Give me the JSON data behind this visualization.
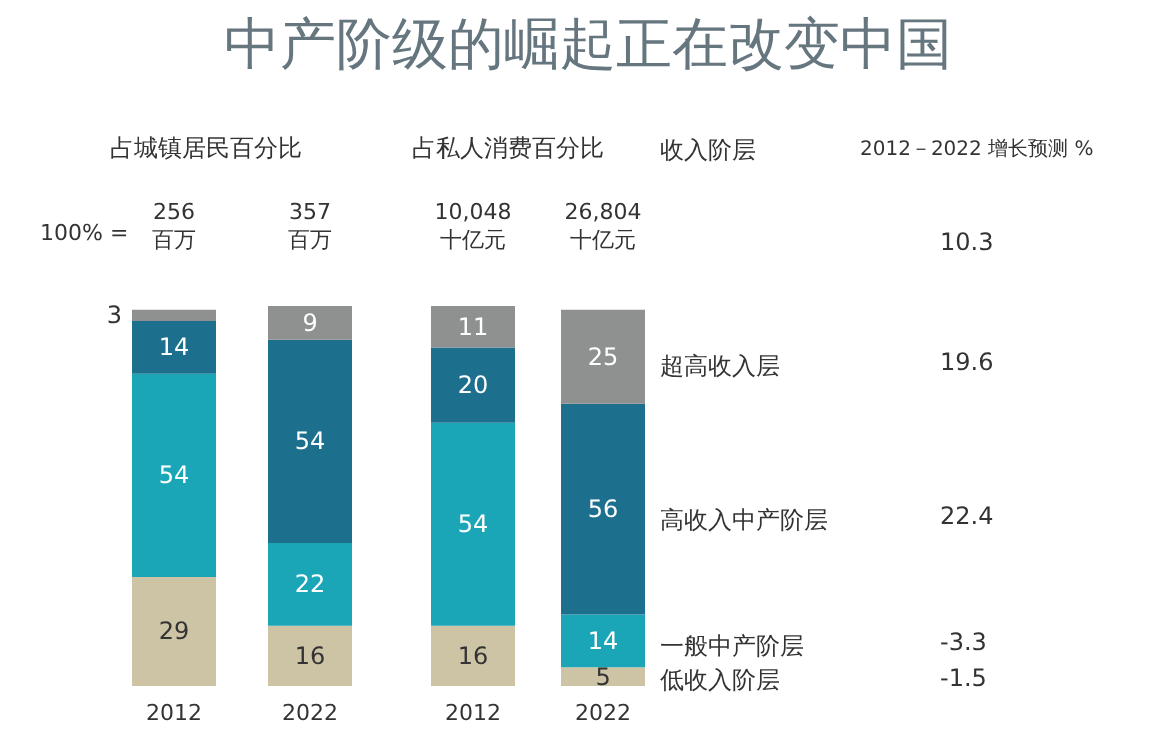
{
  "chart_data": [
    {
      "type": "bar",
      "stacked": true,
      "data_labels": true,
      "tick_labels": "x",
      "title": "占城镇居民百分比",
      "annotations": [
        "100% =",
        "256 百万",
        "357 百万"
      ],
      "categories": [
        "2012",
        "2022"
      ],
      "series": [
        {
          "color": "#cdc4a6",
          "values": [
            29,
            16
          ]
        },
        {
          "color": "#1ba6b8",
          "values": [
            54,
            22
          ]
        },
        {
          "color": "#1d6f8e",
          "values": [
            14,
            54
          ]
        },
        {
          "color": "#8f9191",
          "values": [
            3,
            9
          ]
        }
      ]
    },
    {
      "type": "bar",
      "stacked": true,
      "data_labels": true,
      "tick_labels": "x",
      "title": "占私人消费百分比",
      "annotations": [
        "10,048 十亿元",
        "26,804 十亿元"
      ],
      "categories": [
        "2012",
        "2022"
      ],
      "series": [
        {
          "color": "#cdc4a6",
          "values": [
            16,
            5
          ]
        },
        {
          "color": "#1ba6b8",
          "values": [
            54,
            14
          ]
        },
        {
          "color": "#1d6f8e",
          "values": [
            20,
            56
          ]
        },
        {
          "color": "#8f9191",
          "values": [
            11,
            25
          ]
        }
      ]
    },
    {
      "type": "other",
      "title": "中产阶级的崛起正在改变中国",
      "annotations": [
        "收入阶层",
        "2012－2022 增长预测 %",
        "10.3",
        "超高收入层",
        "19.6",
        "高收入中产阶层",
        "22.4",
        "一般中产阶层",
        "-3.3",
        "低收入阶层",
        "-1.5"
      ]
    }
  ]
}
